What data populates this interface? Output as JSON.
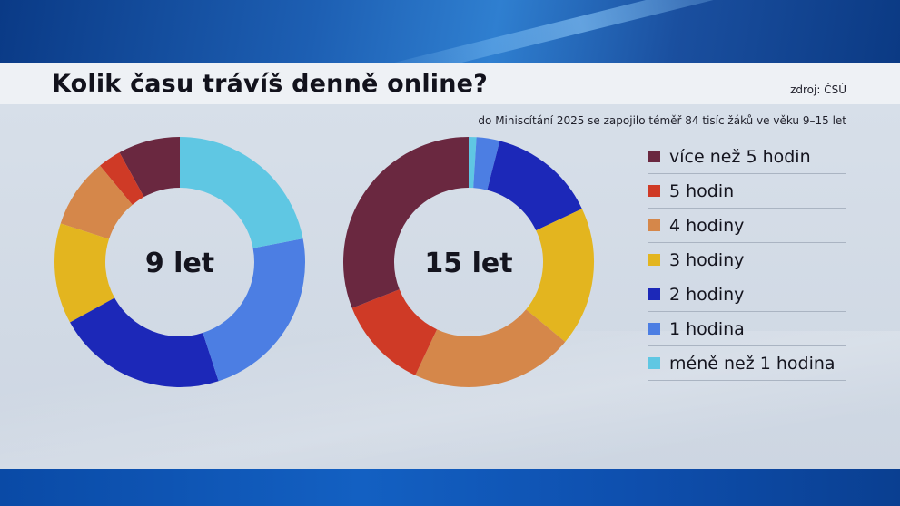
{
  "header": {
    "title": "Kolik času trávíš denně online?",
    "source": "zdroj: ČSÚ",
    "subtitle": "do Miniscítání 2025 se zapojilo téměř 84 tisíc žáků ve věku 9–15 let"
  },
  "legend": [
    {
      "label": "více než 5 hodin",
      "color": "#6a2840"
    },
    {
      "label": "5 hodin",
      "color": "#cf3a26"
    },
    {
      "label": "4 hodiny",
      "color": "#d5874a"
    },
    {
      "label": "3 hodiny",
      "color": "#e3b51f"
    },
    {
      "label": "2 hodiny",
      "color": "#1c28b8"
    },
    {
      "label": "1 hodina",
      "color": "#4c7ee3"
    },
    {
      "label": "méně než 1 hodina",
      "color": "#5fc7e3"
    }
  ],
  "chart_data": [
    {
      "type": "pie",
      "center_label": "9 let",
      "categories": [
        "více než 5 hodin",
        "5 hodin",
        "4 hodiny",
        "3 hodiny",
        "2 hodiny",
        "1 hodina",
        "méně než 1 hodina"
      ],
      "values": [
        8,
        3,
        9,
        13,
        22,
        23,
        22
      ],
      "colors": [
        "#6a2840",
        "#cf3a26",
        "#d5874a",
        "#e3b51f",
        "#1c28b8",
        "#4c7ee3",
        "#5fc7e3"
      ],
      "order": "counter-clockwise from top"
    },
    {
      "type": "pie",
      "center_label": "15 let",
      "categories": [
        "méně než 1 hodina",
        "1 hodina",
        "2 hodiny",
        "3 hodiny",
        "4 hodiny",
        "5 hodin",
        "více než 5 hodin"
      ],
      "values": [
        1,
        3,
        14,
        18,
        21,
        12,
        31
      ],
      "colors": [
        "#5fc7e3",
        "#4c7ee3",
        "#1c28b8",
        "#e3b51f",
        "#d5874a",
        "#cf3a26",
        "#6a2840"
      ],
      "order": "clockwise from top"
    }
  ]
}
